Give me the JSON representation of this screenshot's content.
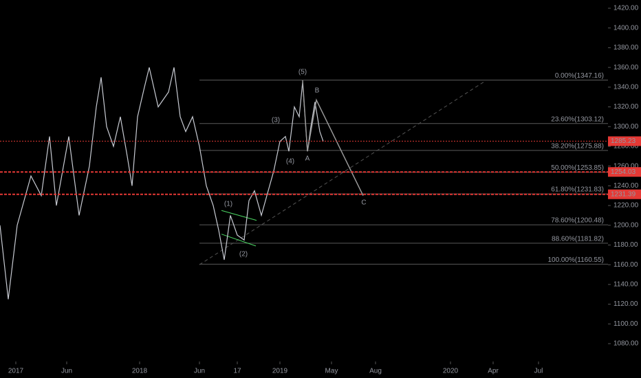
{
  "chart_data": {
    "type": "line",
    "xlim": [
      0,
      884
    ],
    "xticks": [
      {
        "value": 23,
        "label": "2017"
      },
      {
        "value": 97,
        "label": "Jun"
      },
      {
        "value": 203,
        "label": "2018"
      },
      {
        "value": 290,
        "label": "Jun"
      },
      {
        "value": 345,
        "label": "17"
      },
      {
        "value": 407,
        "label": "2019"
      },
      {
        "value": 482,
        "label": "May"
      },
      {
        "value": 546,
        "label": "Aug"
      },
      {
        "value": 655,
        "label": "2020"
      },
      {
        "value": 717,
        "label": "Apr"
      },
      {
        "value": 783,
        "label": "Jul"
      }
    ],
    "ylim": [
      1080,
      1420
    ],
    "yticks": [
      {
        "value": 1080,
        "label": "1080.00"
      },
      {
        "value": 1100,
        "label": "1100.00"
      },
      {
        "value": 1120,
        "label": "1120.00"
      },
      {
        "value": 1140,
        "label": "1140.00"
      },
      {
        "value": 1160,
        "label": "1160.00"
      },
      {
        "value": 1180,
        "label": "1180.00"
      },
      {
        "value": 1200,
        "label": "1200.00"
      },
      {
        "value": 1220,
        "label": "1220.00"
      },
      {
        "value": 1240,
        "label": "1240.00"
      },
      {
        "value": 1260,
        "label": "1260.00"
      },
      {
        "value": 1280,
        "label": "1280.00"
      },
      {
        "value": 1300,
        "label": "1300.00"
      },
      {
        "value": 1320,
        "label": "1320.00"
      },
      {
        "value": 1340,
        "label": "1340.00"
      },
      {
        "value": 1360,
        "label": "1360.00"
      },
      {
        "value": 1380,
        "label": "1380.00"
      },
      {
        "value": 1400,
        "label": "1400.00"
      },
      {
        "value": 1420,
        "label": "1420.00"
      }
    ],
    "series": [
      {
        "color": "#c9ccd4",
        "x": [
          0,
          12,
          25,
          45,
          60,
          72,
          82,
          100,
          115,
          130,
          140,
          147,
          155,
          165,
          175,
          185,
          192,
          200,
          210,
          217,
          230,
          245,
          253,
          262,
          270,
          280,
          290,
          300,
          310,
          318,
          326,
          335,
          345,
          355,
          362,
          370,
          380,
          388,
          398,
          407,
          415,
          420,
          428,
          435,
          440,
          447,
          452,
          458,
          465,
          470
        ],
        "values": [
          1200,
          1125,
          1200,
          1250,
          1230,
          1290,
          1220,
          1290,
          1210,
          1260,
          1320,
          1350,
          1300,
          1280,
          1310,
          1270,
          1240,
          1310,
          1340,
          1360,
          1320,
          1335,
          1360,
          1310,
          1295,
          1310,
          1280,
          1240,
          1220,
          1195,
          1165,
          1210,
          1190,
          1185,
          1225,
          1235,
          1210,
          1230,
          1255,
          1285,
          1290,
          1275,
          1320,
          1310,
          1345,
          1275,
          1300,
          1325,
          1295,
          1285
        ]
      }
    ],
    "fib_levels": [
      {
        "label": "0.00%(1347.16)",
        "value": 1347.16
      },
      {
        "label": "23.60%(1303.12)",
        "value": 1303.12
      },
      {
        "label": "38.20%(1275.88)",
        "value": 1275.88
      },
      {
        "label": "50.00%(1253.85)",
        "value": 1253.85
      },
      {
        "label": "61.80%(1231.83)",
        "value": 1231.83
      },
      {
        "label": "78.60%(1200.48)",
        "value": 1200.48
      },
      {
        "label": "88.60%(1181.82)",
        "value": 1181.82
      },
      {
        "label": "100.00%(1160.55)",
        "value": 1160.55
      }
    ],
    "price_lines": [
      {
        "value": 1285.23,
        "label": "1285.23"
      },
      {
        "value": 1254.03,
        "label": "1254.03"
      },
      {
        "value": 1231.39,
        "label": "1231.39"
      }
    ],
    "wave_labels": [
      {
        "label": "(1)",
        "x": 332,
        "value": 1221.4,
        "color": "#4cd964"
      },
      {
        "label": "(2)",
        "x": 354,
        "value": 1170.6,
        "color": "#4cd964"
      },
      {
        "label": "(3)",
        "x": 401,
        "value": 1306.4,
        "color": "#4cd964"
      },
      {
        "label": "(4)",
        "x": 422,
        "value": 1264.6,
        "color": "#4cd964"
      },
      {
        "label": "(5)",
        "x": 440,
        "value": 1355.2,
        "color": "#4cd964"
      },
      {
        "label": "A",
        "x": 447,
        "value": 1267.4,
        "color": "#e0e0e0"
      },
      {
        "label": "B",
        "x": 461,
        "value": 1336.4,
        "color": "#e0e0e0"
      },
      {
        "label": "C",
        "x": 529,
        "value": 1222.8,
        "color": "#e0e0e0"
      }
    ],
    "abc_path": {
      "x": [
        440,
        447,
        460,
        528
      ],
      "values": [
        1347,
        1275,
        1327,
        1230
      ]
    },
    "trend_line": {
      "x": [
        290,
        705
      ],
      "values": [
        1160,
        1346
      ]
    },
    "channel_lines": [
      {
        "x": [
          322,
          373
        ],
        "values": [
          1215,
          1205
        ]
      },
      {
        "x": [
          322,
          372
        ],
        "values": [
          1191,
          1179
        ]
      }
    ]
  }
}
